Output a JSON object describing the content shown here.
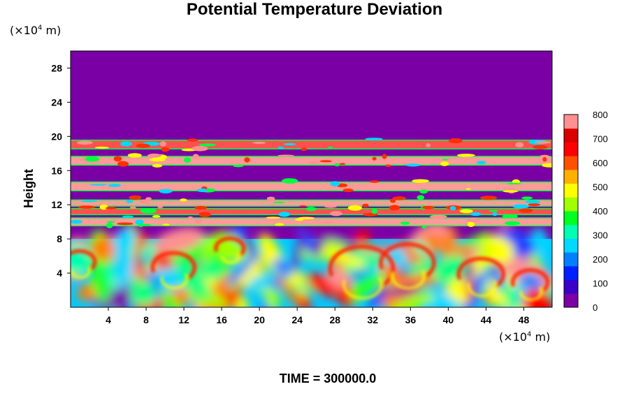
{
  "chart_data": {
    "type": "heatmap",
    "title": "Potential Temperature Deviation",
    "xlabel": "",
    "ylabel": "Height",
    "x_unit_prefix": "(×10",
    "x_unit_exp": "4",
    "x_unit_suffix": " m)",
    "y_unit_prefix": "(×10",
    "y_unit_exp": "4",
    "y_unit_suffix": " m)",
    "xlim": [
      0,
      51
    ],
    "ylim": [
      0,
      30
    ],
    "x_ticks": [
      4,
      8,
      12,
      16,
      20,
      24,
      28,
      32,
      36,
      40,
      44,
      48
    ],
    "y_ticks": [
      4,
      8,
      12,
      16,
      20,
      24,
      28
    ],
    "colorbar": {
      "min": 0,
      "max": 800,
      "ticks": [
        0,
        100,
        200,
        300,
        400,
        500,
        600,
        700,
        800
      ],
      "colors": [
        "#7a00a6",
        "#3a00c8",
        "#0020ff",
        "#0080ff",
        "#00d8ff",
        "#00ffb0",
        "#00ff20",
        "#a0ff00",
        "#ffff00",
        "#ffb000",
        "#ff5000",
        "#ff0000",
        "#d80000",
        "#ff9090"
      ]
    },
    "layers": [
      {
        "y": [
          0,
          8
        ],
        "description_value": "turbulent mixed layer, values 0-800"
      },
      {
        "y": [
          8,
          30
        ],
        "value": 0
      }
    ],
    "bands": [
      {
        "y_bottom": 9.6,
        "y_top": 10.4,
        "value": 800
      },
      {
        "y_bottom": 10.9,
        "y_top": 11.5,
        "value": 700
      },
      {
        "y_bottom": 11.9,
        "y_top": 12.5,
        "value": 800
      },
      {
        "y_bottom": 13.7,
        "y_top": 14.6,
        "value": 800
      },
      {
        "y_bottom": 16.7,
        "y_top": 17.6,
        "value": 800
      },
      {
        "y_bottom": 18.6,
        "y_top": 19.5,
        "value": 700
      }
    ],
    "colors": {
      "background": "#7a00a6",
      "band": "#ff9a9a",
      "band_edge": "#00ff40"
    }
  },
  "time_label": "TIME = 300000.0"
}
